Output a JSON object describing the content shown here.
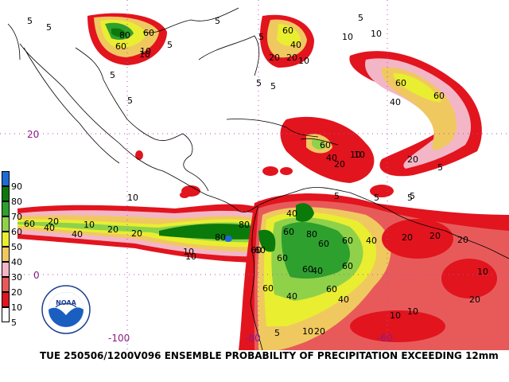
{
  "map": {
    "caption": "TUE 250506/1200V096  ENSEMBLE PROBABILITY OF PRECIPITATION EXCEEDING 12mm",
    "lat_labels": [
      "20",
      "0"
    ],
    "lon_labels": [
      "-100",
      "-80",
      "-60"
    ],
    "legend": {
      "levels": [
        "90",
        "80",
        "70",
        "60",
        "50",
        "40",
        "30",
        "20",
        "10",
        "5"
      ],
      "colors": [
        "#1e6bd6",
        "#0a7a0a",
        "#2ea02e",
        "#8fd24a",
        "#e9ee30",
        "#f0c860",
        "#f3b6c6",
        "#e85a5a",
        "#e2141e",
        "#ffffff"
      ]
    },
    "logo": {
      "text": "NOAA",
      "ring_text": "NATIONAL OCEANIC AND ATMOSPHERIC ADMINISTRATION • U.S. DEPARTMENT OF COMMERCE"
    },
    "contour_labels": [
      "5",
      "5",
      "5",
      "5",
      "5",
      "10",
      "10",
      "5",
      "10",
      "5",
      "80",
      "60",
      "60",
      "10",
      "5",
      "60",
      "40",
      "20",
      "20",
      "10",
      "5",
      "5",
      "60",
      "40",
      "60",
      "60",
      "40",
      "20",
      "20",
      "10",
      "5",
      "5",
      "60",
      "40",
      "40",
      "10",
      "10",
      "20",
      "20",
      "20",
      "10",
      "10",
      "10",
      "80",
      "60",
      "40",
      "60",
      "60",
      "80",
      "60",
      "40",
      "60",
      "60",
      "80",
      "60",
      "60",
      "40",
      "60",
      "60",
      "40",
      "40",
      "20",
      "20",
      "20",
      "20",
      "10",
      "10",
      "10",
      "20",
      "10",
      "5",
      "5",
      "5",
      "5"
    ]
  }
}
